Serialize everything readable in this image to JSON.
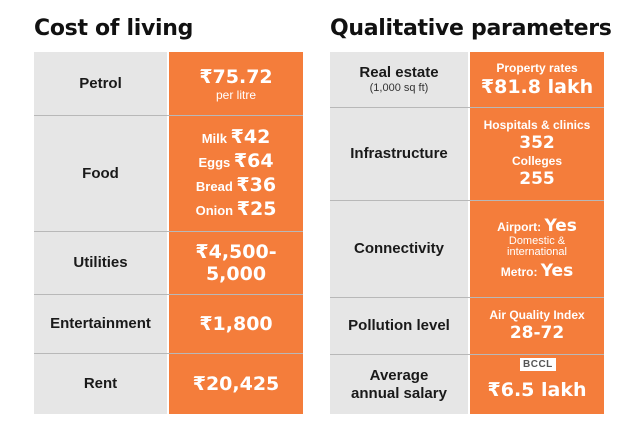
{
  "left": {
    "title": "Cost of living",
    "rows": [
      {
        "label": "Petrol",
        "value": "₹75.72",
        "note": "per litre"
      },
      {
        "label": "Food",
        "items": [
          {
            "name": "Milk",
            "price": "₹42"
          },
          {
            "name": "Eggs",
            "price": "₹64"
          },
          {
            "name": "Bread",
            "price": "₹36"
          },
          {
            "name": "Onion",
            "price": "₹25"
          }
        ]
      },
      {
        "label": "Utilities",
        "value": "₹4,500-5,000"
      },
      {
        "label": "Entertainment",
        "value": "₹1,800"
      },
      {
        "label": "Rent",
        "value": "₹20,425"
      }
    ]
  },
  "right": {
    "title": "Qualitative parameters",
    "rows": [
      {
        "label": "Real estate",
        "sublabel": "(1,000 sq ft)",
        "caption": "Property rates",
        "value": "₹81.8 lakh"
      },
      {
        "label": "Infrastructure",
        "caption1": "Hospitals & clinics",
        "value1": "352",
        "caption2": "Colleges",
        "value2": "255"
      },
      {
        "label": "Connectivity",
        "airport_label": "Airport:",
        "airport_value": "Yes",
        "airport_note1": "Domestic &",
        "airport_note2": "international",
        "metro_label": "Metro:",
        "metro_value": "Yes"
      },
      {
        "label": "Pollution level",
        "caption": "Air Quality Index",
        "value": "28-72"
      },
      {
        "label_line1": "Average",
        "label_line2": "annual salary",
        "value": "₹6.5 lakh"
      }
    ]
  },
  "credit": "BCCL",
  "colors": {
    "accent": "#f47d3b",
    "label_bg": "#e6e6e6"
  }
}
